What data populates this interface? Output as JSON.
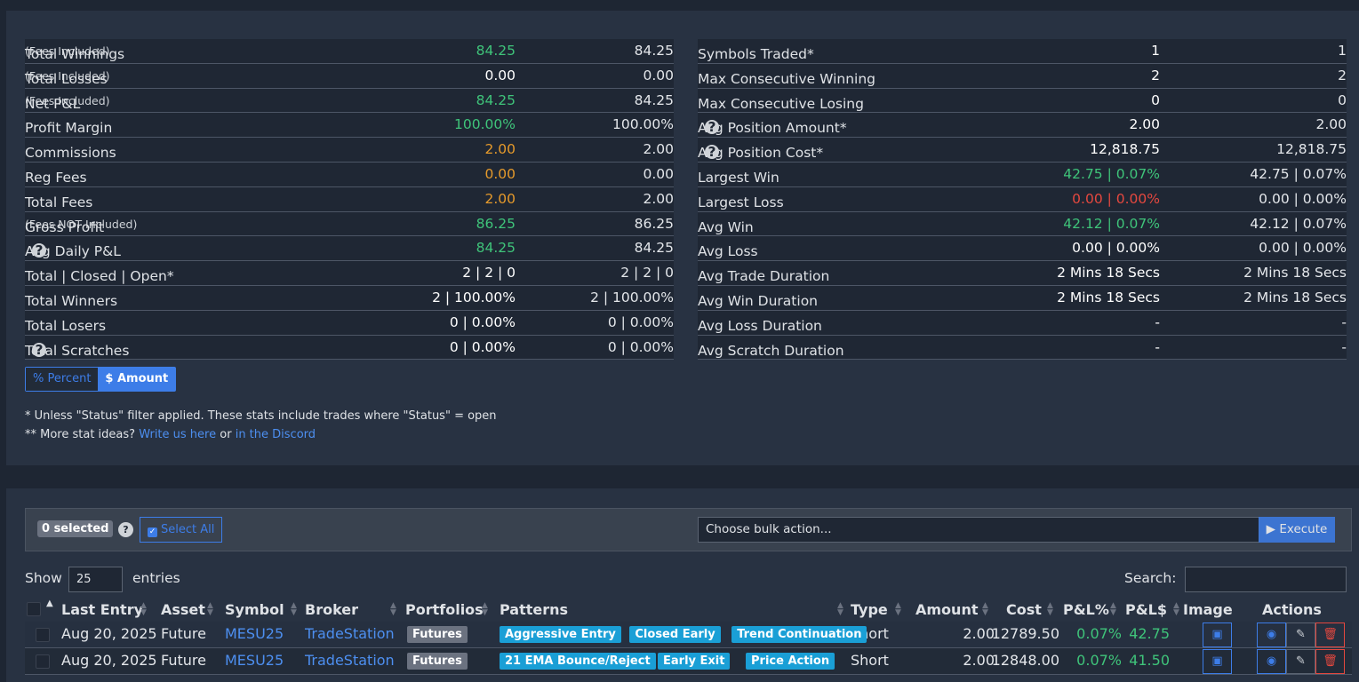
{
  "stats_left": [
    {
      "label": "Total Winnings",
      "note": "(Fees Included)",
      "v1": "84.25",
      "v1_color": "green",
      "v2": "84.25"
    },
    {
      "label": "Total Losses",
      "note": "(Fees Included)",
      "v1": "0.00",
      "v1_color": "white",
      "v2": "0.00"
    },
    {
      "label": "Net P&L",
      "note": "(Fees Included)",
      "v1": "84.25",
      "v1_color": "green",
      "v2": "84.25"
    },
    {
      "label": "Profit Margin",
      "note": "",
      "v1": "100.00%",
      "v1_color": "green",
      "v2": "100.00%"
    },
    {
      "label": "Commissions",
      "note": "",
      "v1": "2.00",
      "v1_color": "orange",
      "v2": "2.00"
    },
    {
      "label": "Reg Fees",
      "note": "",
      "v1": "0.00",
      "v1_color": "orange",
      "v2": "0.00"
    },
    {
      "label": "Total Fees",
      "note": "",
      "v1": "2.00",
      "v1_color": "orange",
      "v2": "2.00"
    },
    {
      "label": "Gross Profit",
      "note": "(Fees NOT Included)",
      "v1": "86.25",
      "v1_color": "green",
      "v2": "86.25"
    },
    {
      "label": "Avg Daily P&L",
      "note": "",
      "help": true,
      "v1": "84.25",
      "v1_color": "green",
      "v2": "84.25"
    },
    {
      "label": "Total | Closed | Open*",
      "note": "",
      "v1": "2 | 2 | 0",
      "v1_color": "white",
      "v2": "2 | 2 | 0"
    },
    {
      "label": "Total Winners",
      "note": "",
      "v1": "2 | 100.00%",
      "v1_color": "white",
      "v2": "2 | 100.00%"
    },
    {
      "label": "Total Losers",
      "note": "",
      "v1": "0 | 0.00%",
      "v1_color": "white",
      "v2": "0 | 0.00%"
    },
    {
      "label": "Total Scratches",
      "note": "",
      "help": true,
      "v1": "0 | 0.00%",
      "v1_color": "white",
      "v2": "0 | 0.00%"
    }
  ],
  "stats_right": [
    {
      "label": "Symbols Traded*",
      "v1": "1",
      "v1_color": "white",
      "v2": "1"
    },
    {
      "label": "Max Consecutive Winning",
      "v1": "2",
      "v1_color": "white",
      "v2": "2"
    },
    {
      "label": "Max Consecutive Losing",
      "v1": "0",
      "v1_color": "white",
      "v2": "0"
    },
    {
      "label": "Avg Position Amount*",
      "help": true,
      "v1": "2.00",
      "v1_color": "white",
      "v2": "2.00"
    },
    {
      "label": "Avg Position Cost*",
      "help": true,
      "v1": "12,818.75",
      "v1_color": "white",
      "v2": "12,818.75"
    },
    {
      "label": "Largest Win",
      "v1": "42.75 | 0.07%",
      "v1_color": "green",
      "v2": "42.75 | 0.07%"
    },
    {
      "label": "Largest Loss",
      "v1": "0.00 | 0.00%",
      "v1_color": "red",
      "v2": "0.00 | 0.00%"
    },
    {
      "label": "Avg Win",
      "v1": "42.12 | 0.07%",
      "v1_color": "green",
      "v2": "42.12 | 0.07%"
    },
    {
      "label": "Avg Loss",
      "v1": "0.00 | 0.00%",
      "v1_color": "white",
      "v2": "0.00 | 0.00%"
    },
    {
      "label": "Avg Trade Duration",
      "v1": "2 Mins 18 Secs",
      "v1_color": "white",
      "v2": "2 Mins 18 Secs"
    },
    {
      "label": "Avg Win Duration",
      "v1": "2 Mins 18 Secs",
      "v1_color": "white",
      "v2": "2 Mins 18 Secs"
    },
    {
      "label": "Avg Loss Duration",
      "v1": "-",
      "v1_color": "white",
      "v2": "-"
    },
    {
      "label": "Avg Scratch Duration",
      "v1": "-",
      "v1_color": "white",
      "v2": "-"
    }
  ],
  "toggle": {
    "percent_label": "Percent",
    "amount_label": "Amount"
  },
  "notes": {
    "line1": "* Unless \"Status\" filter applied. These stats include trades where \"Status\" = open",
    "line2_prefix": "** More stat ideas?",
    "link1": "Write us here",
    "or": "or",
    "link2": "in the Discord"
  },
  "bulk": {
    "selected_count": "0 selected",
    "select_all": "Select All",
    "action_placeholder": "Choose bulk action...",
    "execute": "Execute"
  },
  "table_controls": {
    "show": "Show",
    "entries_value": "25",
    "entries": "entries",
    "search_label": "Search:"
  },
  "columns": [
    "Last Entry",
    "Asset",
    "Symbol",
    "Broker",
    "Portfolios",
    "Patterns",
    "Type",
    "Amount",
    "Cost",
    "P&L%",
    "P&L$",
    "Image",
    "Actions"
  ],
  "rows": [
    {
      "date": "Aug 20, 2025",
      "asset": "Future",
      "symbol": "MESU25",
      "broker": "TradeStation",
      "portfolio": "Futures",
      "patterns": [
        "Aggressive Entry",
        "Closed Early",
        "Trend Continuation"
      ],
      "type": "Short",
      "amount": "2.00",
      "cost": "12789.50",
      "pnl_pct": "0.07%",
      "pnl_usd": "42.75"
    },
    {
      "date": "Aug 20, 2025",
      "asset": "Future",
      "symbol": "MESU25",
      "broker": "TradeStation",
      "portfolio": "Futures",
      "patterns": [
        "21 EMA Bounce/Reject",
        "Early Exit",
        "Price Action"
      ],
      "type": "Short",
      "amount": "2.00",
      "cost": "12848.00",
      "pnl_pct": "0.07%",
      "pnl_usd": "41.50"
    }
  ],
  "colors": {
    "green": "#3fc47a",
    "orange": "#e69a2b",
    "red": "#e5483f",
    "accent": "#3d7de8",
    "tag": "#1a9fd6"
  }
}
